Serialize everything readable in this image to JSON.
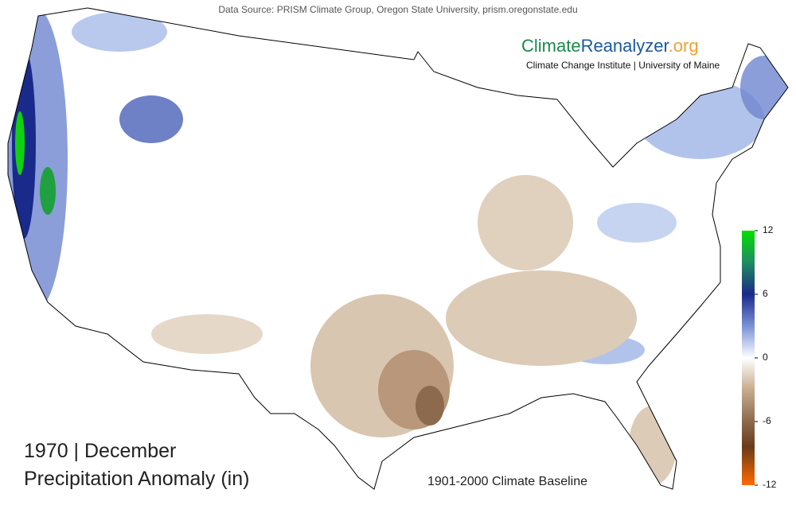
{
  "header": {
    "source": "Data Source: PRISM Climate Group, Oregon State University, prism.oregonstate.edu"
  },
  "logo": {
    "parts": [
      "Climate",
      "Reanalyzer",
      ".org"
    ],
    "subtitle": "Climate Change Institute | University of Maine"
  },
  "title": {
    "line1": "1970 | December",
    "line2": "Precipitation Anomaly (in)"
  },
  "baseline": "1901-2000 Climate Baseline",
  "colorbar": {
    "lim": [
      -12,
      12
    ],
    "ticks": [
      12,
      6,
      0,
      -6,
      -12
    ]
  }
}
